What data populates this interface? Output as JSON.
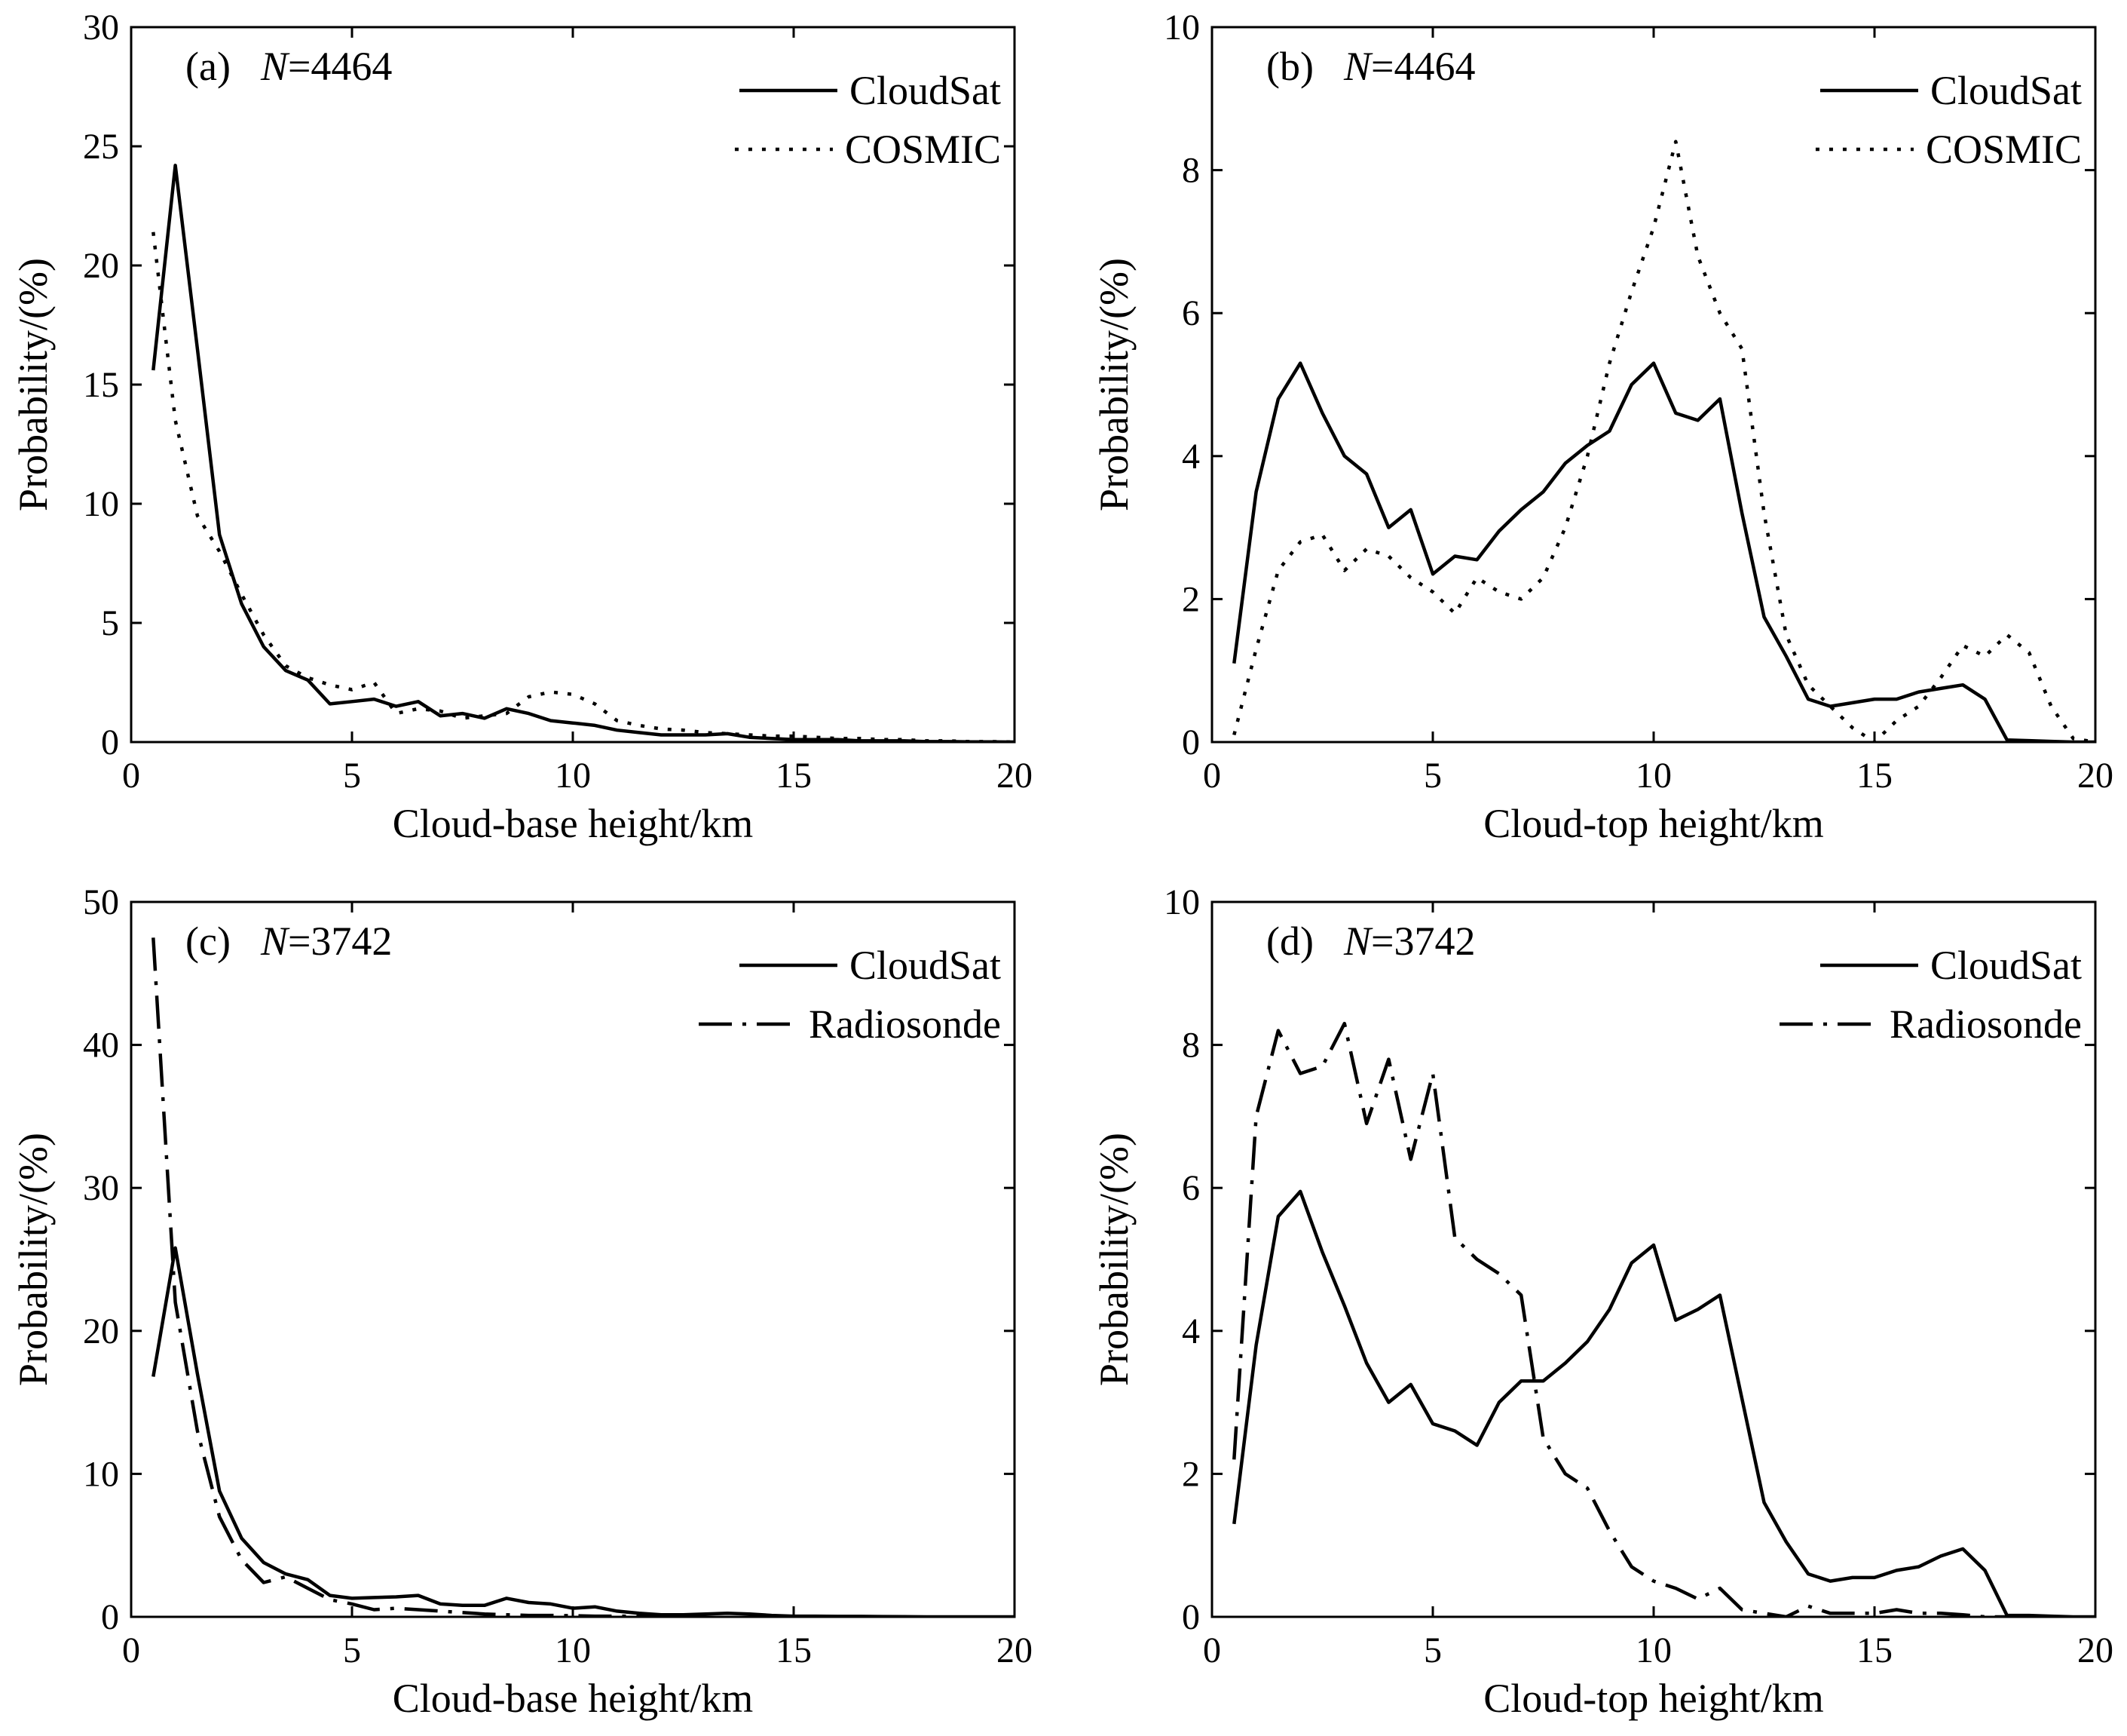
{
  "chart_data": [
    {
      "type": "line",
      "panel_label": "(a)",
      "n_label_italic": "N",
      "n_label_value": "=4464",
      "xlabel": "Cloud-base height/km",
      "ylabel": "Probability/(%)",
      "xlim": [
        0,
        20
      ],
      "ylim": [
        0,
        30
      ],
      "xticks": [
        0,
        5,
        10,
        15,
        20
      ],
      "yticks": [
        0,
        5,
        10,
        15,
        20,
        25,
        30
      ],
      "legend_position": "top-right",
      "series": [
        {
          "name": "CloudSat",
          "style": "solid",
          "x": [
            0.5,
            1,
            1.5,
            2,
            2.5,
            3,
            3.5,
            4,
            4.5,
            5,
            5.5,
            6,
            6.5,
            7,
            7.5,
            8,
            8.5,
            9,
            9.5,
            10,
            10.5,
            11,
            11.5,
            12,
            12.5,
            13,
            13.5,
            14,
            14.5,
            15,
            15.5,
            16,
            16.5,
            17,
            17.5,
            18,
            18.5,
            19,
            19.5,
            20
          ],
          "y": [
            15.6,
            24.2,
            16.5,
            8.7,
            5.8,
            4.0,
            3.0,
            2.6,
            1.6,
            1.7,
            1.8,
            1.5,
            1.7,
            1.1,
            1.2,
            1.0,
            1.4,
            1.2,
            0.9,
            0.8,
            0.7,
            0.5,
            0.4,
            0.3,
            0.3,
            0.3,
            0.35,
            0.2,
            0.15,
            0.1,
            0.1,
            0.1,
            0.05,
            0.05,
            0.05,
            0.02,
            0.02,
            0.01,
            0.01,
            0.0
          ]
        },
        {
          "name": "COSMIC",
          "style": "dotted",
          "x": [
            0.5,
            1,
            1.5,
            2,
            2.5,
            3,
            3.5,
            4,
            4.5,
            5,
            5.5,
            6,
            6.5,
            7,
            7.5,
            8,
            8.5,
            9,
            9.5,
            10,
            10.5,
            11,
            11.5,
            12,
            12.5,
            13,
            13.5,
            14,
            14.5,
            15,
            15.5,
            16,
            16.5,
            17,
            17.5,
            18,
            18.5,
            19,
            19.5,
            20
          ],
          "y": [
            21.4,
            13.5,
            9.5,
            8.0,
            6.2,
            4.5,
            3.2,
            2.7,
            2.4,
            2.2,
            2.5,
            1.2,
            1.4,
            1.3,
            1.0,
            1.1,
            1.2,
            1.9,
            2.1,
            2.0,
            1.6,
            0.9,
            0.7,
            0.55,
            0.5,
            0.4,
            0.35,
            0.3,
            0.25,
            0.25,
            0.2,
            0.15,
            0.15,
            0.1,
            0.1,
            0.05,
            0.05,
            0.02,
            0.02,
            0.0
          ]
        }
      ]
    },
    {
      "type": "line",
      "panel_label": "(b)",
      "n_label_italic": "N",
      "n_label_value": "=4464",
      "xlabel": "Cloud-top height/km",
      "ylabel": "Probability/(%)",
      "xlim": [
        0,
        20
      ],
      "ylim": [
        0,
        10
      ],
      "xticks": [
        0,
        5,
        10,
        15,
        20
      ],
      "yticks": [
        0,
        2,
        4,
        6,
        8,
        10
      ],
      "legend_position": "top-right",
      "series": [
        {
          "name": "CloudSat",
          "style": "solid",
          "x": [
            0.5,
            1,
            1.5,
            2,
            2.5,
            3,
            3.5,
            4,
            4.5,
            5,
            5.5,
            6,
            6.5,
            7,
            7.5,
            8,
            8.5,
            9,
            9.5,
            10,
            10.5,
            11,
            11.5,
            12,
            12.5,
            13,
            13.5,
            14,
            14.5,
            15,
            15.5,
            16,
            16.5,
            17,
            17.5,
            18,
            18.5,
            19,
            19.5,
            20
          ],
          "y": [
            1.1,
            3.5,
            4.8,
            5.3,
            4.6,
            4.0,
            3.75,
            3.0,
            3.25,
            2.35,
            2.6,
            2.55,
            2.95,
            3.25,
            3.5,
            3.9,
            4.15,
            4.35,
            5.0,
            5.3,
            4.6,
            4.5,
            4.8,
            3.2,
            1.75,
            1.2,
            0.6,
            0.5,
            0.55,
            0.6,
            0.6,
            0.7,
            0.75,
            0.8,
            0.6,
            0.03,
            0.02,
            0.01,
            0.0,
            0.0
          ]
        },
        {
          "name": "COSMIC",
          "style": "dotted",
          "x": [
            0.5,
            1,
            1.5,
            2,
            2.5,
            3,
            3.5,
            4,
            4.5,
            5,
            5.5,
            6,
            6.5,
            7,
            7.5,
            8,
            8.5,
            9,
            9.5,
            10,
            10.5,
            11,
            11.5,
            12,
            12.5,
            13,
            13.5,
            14,
            14.5,
            15,
            15.5,
            16,
            16.5,
            17,
            17.5,
            18,
            18.5,
            19,
            19.5,
            20
          ],
          "y": [
            0.1,
            1.3,
            2.4,
            2.8,
            2.9,
            2.4,
            2.7,
            2.6,
            2.3,
            2.1,
            1.8,
            2.3,
            2.1,
            2.0,
            2.3,
            3.0,
            4.0,
            5.3,
            6.3,
            7.2,
            8.4,
            6.8,
            6.0,
            5.5,
            3.2,
            1.5,
            0.8,
            0.5,
            0.2,
            0.0,
            0.3,
            0.5,
            0.9,
            1.35,
            1.2,
            1.5,
            1.25,
            0.5,
            0.05,
            0.0
          ]
        }
      ]
    },
    {
      "type": "line",
      "panel_label": "(c)",
      "n_label_italic": "N",
      "n_label_value": "=3742",
      "xlabel": "Cloud-base height/km",
      "ylabel": "Probability/(%)",
      "xlim": [
        0,
        20
      ],
      "ylim": [
        0,
        50
      ],
      "xticks": [
        0,
        5,
        10,
        15,
        20
      ],
      "yticks": [
        0,
        10,
        20,
        30,
        40,
        50
      ],
      "legend_position": "top-right",
      "series": [
        {
          "name": "CloudSat",
          "style": "solid",
          "x": [
            0.5,
            1,
            1.5,
            2,
            2.5,
            3,
            3.5,
            4,
            4.5,
            5,
            5.5,
            6,
            6.5,
            7,
            7.5,
            8,
            8.5,
            9,
            9.5,
            10,
            10.5,
            11,
            11.5,
            12,
            12.5,
            13,
            13.5,
            14,
            14.5,
            15,
            15.5,
            16,
            16.5,
            17,
            17.5,
            18,
            18.5,
            19,
            19.5,
            20
          ],
          "y": [
            16.8,
            25.8,
            17.0,
            8.8,
            5.5,
            3.8,
            3.0,
            2.6,
            1.5,
            1.3,
            1.35,
            1.4,
            1.5,
            0.9,
            0.8,
            0.8,
            1.3,
            1.0,
            0.9,
            0.6,
            0.7,
            0.4,
            0.25,
            0.15,
            0.15,
            0.2,
            0.25,
            0.2,
            0.1,
            0.05,
            0.05,
            0.03,
            0.03,
            0.02,
            0.01,
            0.0,
            0.0,
            0.0,
            0.0,
            0.0
          ]
        },
        {
          "name": "Radiosonde",
          "style": "dashdot",
          "x": [
            0.5,
            1,
            1.5,
            2,
            2.5,
            3,
            3.5,
            4,
            4.5,
            5,
            5.5,
            6,
            6.5,
            7,
            7.5,
            8,
            8.5,
            9,
            9.5,
            10,
            10.5,
            11,
            11.5,
            12,
            12.5,
            13
          ],
          "y": [
            47.5,
            22.0,
            13.0,
            7.0,
            4.0,
            2.4,
            2.8,
            2.0,
            1.2,
            0.9,
            0.5,
            0.6,
            0.5,
            0.4,
            0.3,
            0.2,
            0.15,
            0.1,
            0.1,
            0.08,
            0.05,
            0.05,
            0.03,
            0.02,
            0.01,
            0.0
          ]
        }
      ]
    },
    {
      "type": "line",
      "panel_label": "(d)",
      "n_label_italic": "N",
      "n_label_value": "=3742",
      "xlabel": "Cloud-top height/km",
      "ylabel": "Probability/(%)",
      "xlim": [
        0,
        20
      ],
      "ylim": [
        0,
        10
      ],
      "xticks": [
        0,
        5,
        10,
        15,
        20
      ],
      "yticks": [
        0,
        2,
        4,
        6,
        8,
        10
      ],
      "legend_position": "top-right",
      "series": [
        {
          "name": "CloudSat",
          "style": "solid",
          "x": [
            0.5,
            1,
            1.5,
            2,
            2.5,
            3,
            3.5,
            4,
            4.5,
            5,
            5.5,
            6,
            6.5,
            7,
            7.5,
            8,
            8.5,
            9,
            9.5,
            10,
            10.5,
            11,
            11.5,
            12,
            12.5,
            13,
            13.5,
            14,
            14.5,
            15,
            15.5,
            16,
            16.5,
            17,
            17.5,
            18,
            18.5,
            19,
            19.5,
            20
          ],
          "y": [
            1.3,
            3.8,
            5.6,
            5.95,
            5.1,
            4.35,
            3.55,
            3.0,
            3.25,
            2.7,
            2.6,
            2.4,
            3.0,
            3.3,
            3.3,
            3.55,
            3.85,
            4.3,
            4.95,
            5.2,
            4.15,
            4.3,
            4.5,
            3.05,
            1.6,
            1.05,
            0.6,
            0.5,
            0.55,
            0.55,
            0.65,
            0.7,
            0.85,
            0.95,
            0.65,
            0.02,
            0.02,
            0.01,
            0.0,
            0.0
          ]
        },
        {
          "name": "Radiosonde",
          "style": "dashdot",
          "x": [
            0.5,
            1,
            1.5,
            2,
            2.5,
            3,
            3.5,
            4,
            4.5,
            5,
            5.5,
            6,
            6.5,
            7,
            7.5,
            8,
            8.5,
            9,
            9.5,
            10,
            10.5,
            11,
            11.5,
            12,
            12.5,
            13,
            13.5,
            14,
            14.5,
            15,
            15.5,
            16,
            16.5,
            17,
            17.5,
            18
          ],
          "y": [
            2.2,
            7.0,
            8.2,
            7.6,
            7.7,
            8.3,
            6.9,
            7.8,
            6.4,
            7.6,
            5.3,
            5.0,
            4.8,
            4.5,
            2.5,
            2.0,
            1.8,
            1.2,
            0.7,
            0.5,
            0.4,
            0.25,
            0.4,
            0.1,
            0.05,
            0.0,
            0.15,
            0.05,
            0.05,
            0.05,
            0.1,
            0.05,
            0.05,
            0.03,
            0.0,
            0.0
          ]
        }
      ]
    }
  ]
}
